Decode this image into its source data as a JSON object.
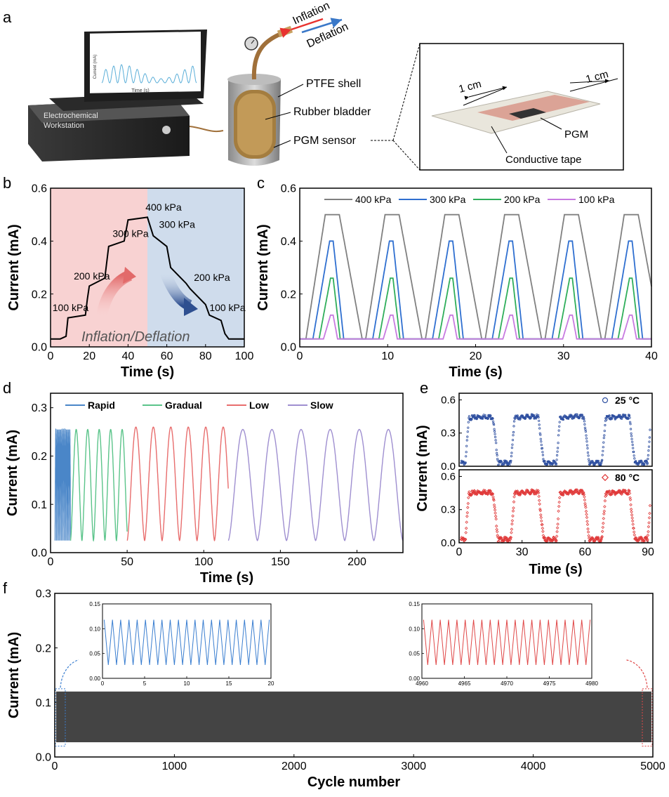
{
  "panels": {
    "a": {
      "letter": "a",
      "workstation": {
        "label_line1": "Electrochemical",
        "label_line2": "Workstation"
      },
      "screen": {
        "ylabel": "Current (mA)",
        "xlabel": "Time (s)"
      },
      "arrows": {
        "inflation": "Inflation",
        "deflation": "Deflation"
      },
      "callouts": [
        "PTFE shell",
        "Rubber bladder",
        "PGM sensor"
      ],
      "inset": {
        "dim1": "1 cm",
        "dim2": "1 cm",
        "pgm": "PGM",
        "tape": "Conductive tape"
      },
      "colors": {
        "inflation": "#e8322f",
        "deflation": "#3a78c8",
        "tape": "#d99b8e"
      }
    },
    "b": {
      "letter": "b",
      "overlay": "Inflation/Deflation",
      "colors": {
        "inflate_bg": "#f8d2d2",
        "deflate_bg": "#cfdcec",
        "line": "#000000"
      }
    },
    "c": {
      "letter": "c"
    },
    "d": {
      "letter": "d"
    },
    "e": {
      "letter": "e"
    },
    "f": {
      "letter": "f"
    }
  },
  "chart_data": [
    {
      "id": "b",
      "type": "line",
      "xlabel": "Time (s)",
      "ylabel": "Current (mA)",
      "xlim": [
        0,
        100
      ],
      "ylim": [
        0,
        0.6
      ],
      "xticks": [
        "0",
        "20",
        "40",
        "60",
        "80",
        "100"
      ],
      "yticks": [
        "0.0",
        "0.2",
        "0.4",
        "0.6"
      ],
      "x": [
        0,
        5,
        8,
        9,
        18,
        19,
        20,
        28,
        30,
        38,
        40,
        50,
        53,
        60,
        62,
        70,
        72,
        80,
        82,
        88,
        90,
        92,
        100
      ],
      "y": [
        0.03,
        0.03,
        0.04,
        0.11,
        0.12,
        0.18,
        0.23,
        0.26,
        0.38,
        0.4,
        0.48,
        0.49,
        0.42,
        0.38,
        0.3,
        0.24,
        0.22,
        0.16,
        0.12,
        0.1,
        0.05,
        0.03,
        0.03
      ],
      "annotations": [
        {
          "text": "100 kPa",
          "x": 1,
          "y": 0.135
        },
        {
          "text": "200 kPa",
          "x": 12,
          "y": 0.255
        },
        {
          "text": "300 kPa",
          "x": 32,
          "y": 0.415
        },
        {
          "text": "400 kPa",
          "x": 49,
          "y": 0.515
        },
        {
          "text": "300 kPa",
          "x": 56,
          "y": 0.45
        },
        {
          "text": "200 kPa",
          "x": 74,
          "y": 0.25
        },
        {
          "text": "100 kPa",
          "x": 82,
          "y": 0.135
        }
      ],
      "regions": [
        {
          "name": "Inflation",
          "x": [
            0,
            50
          ]
        },
        {
          "name": "Deflation",
          "x": [
            50,
            100
          ]
        }
      ]
    },
    {
      "id": "c",
      "type": "line",
      "xlabel": "Time (s)",
      "ylabel": "Current (mA)",
      "xlim": [
        0,
        40
      ],
      "ylim": [
        0,
        0.6
      ],
      "xticks": [
        "0",
        "10",
        "20",
        "30",
        "40"
      ],
      "yticks": [
        "0.0",
        "0.2",
        "0.4",
        "0.6"
      ],
      "cycle_centers": [
        3.7,
        10.5,
        17.3,
        24.1,
        30.9,
        37.7
      ],
      "baseline": 0.03,
      "series": [
        {
          "name": "400 kPa",
          "color": "#808080",
          "peak": 0.5,
          "rise_start": -3.0,
          "peak_start": -0.8,
          "peak_end": 0.8,
          "fall_end": 3.4
        },
        {
          "name": "300 kPa",
          "color": "#2f6fd0",
          "peak": 0.4,
          "rise_start": -2.2,
          "peak_start": -0.3,
          "peak_end": 0.1,
          "fall_end": 1.3
        },
        {
          "name": "200 kPa",
          "color": "#2fae5a",
          "peak": 0.26,
          "rise_start": -1.5,
          "peak_start": -0.2,
          "peak_end": 0.1,
          "fall_end": 0.9
        },
        {
          "name": "100 kPa",
          "color": "#c77ae0",
          "peak": 0.12,
          "rise_start": -1.0,
          "peak_start": -0.2,
          "peak_end": 0.1,
          "fall_end": 0.6
        }
      ]
    },
    {
      "id": "d",
      "type": "line",
      "xlabel": "Time (s)",
      "ylabel": "Current (mA)",
      "xlim": [
        0,
        230
      ],
      "ylim": [
        0,
        0.33
      ],
      "xticks": [
        "0",
        "50",
        "100",
        "150",
        "200"
      ],
      "yticks": [
        "0.0",
        "0.1",
        "0.2",
        "0.3"
      ],
      "baseline": 0.025,
      "series": [
        {
          "name": "Rapid",
          "color": "#4a86c8",
          "start": 3,
          "end": 13,
          "period": 1.0,
          "peak": 0.255
        },
        {
          "name": "Gradual",
          "color": "#5bc48a",
          "start": 13,
          "end": 50,
          "period": 7.5,
          "peak": 0.255
        },
        {
          "name": "Low",
          "color": "#e86d6d",
          "start": 50,
          "end": 116,
          "period": 11.4,
          "peak": 0.26
        },
        {
          "name": "Slow",
          "color": "#9f8fd0",
          "start": 116,
          "end": 230,
          "period": 19.0,
          "peak": 0.255
        }
      ]
    },
    {
      "id": "e",
      "type": "scatter",
      "xlabel": "Time (s)",
      "ylabel": "Current (mA)",
      "xlim": [
        0,
        92
      ],
      "ylim": [
        0,
        0.66
      ],
      "xticks": [
        "0",
        "30",
        "60",
        "90"
      ],
      "yticks": [
        "0.0",
        "0.3",
        "0.6"
      ],
      "period": 21.7,
      "baseline": 0.03,
      "series": [
        {
          "name": "25 °C",
          "color": "#2e4fa0",
          "peak": 0.45
        },
        {
          "name": "80 °C",
          "color": "#e03a3a",
          "peak": 0.46
        }
      ]
    },
    {
      "id": "f",
      "type": "line",
      "xlabel": "Cycle number",
      "ylabel": "Current (mA)",
      "xlim": [
        0,
        5000
      ],
      "ylim": [
        0,
        0.3
      ],
      "xticks": [
        "0",
        "1000",
        "2000",
        "3000",
        "4000",
        "5000"
      ],
      "yticks": [
        "0.0",
        "0.1",
        "0.2",
        "0.3"
      ],
      "band": {
        "low": 0.027,
        "high": 0.12,
        "color": "#444444"
      },
      "insets": [
        {
          "xlim": [
            0,
            20
          ],
          "ylim": [
            0,
            0.15
          ],
          "xticks": [
            "0",
            "5",
            "10",
            "15",
            "20"
          ],
          "yticks": [
            "0.00",
            "0.05",
            "0.10",
            "0.15"
          ],
          "color": "#3a7ed0",
          "low": 0.027,
          "high": 0.118,
          "cycles": 20
        },
        {
          "xlim": [
            4960,
            4980
          ],
          "ylim": [
            0,
            0.15
          ],
          "xticks": [
            "4960",
            "4965",
            "4970",
            "4975",
            "4980"
          ],
          "yticks": [
            "0.00",
            "0.05",
            "0.10",
            "0.15"
          ],
          "color": "#e04848",
          "low": 0.027,
          "high": 0.118,
          "cycles": 20
        }
      ]
    }
  ]
}
